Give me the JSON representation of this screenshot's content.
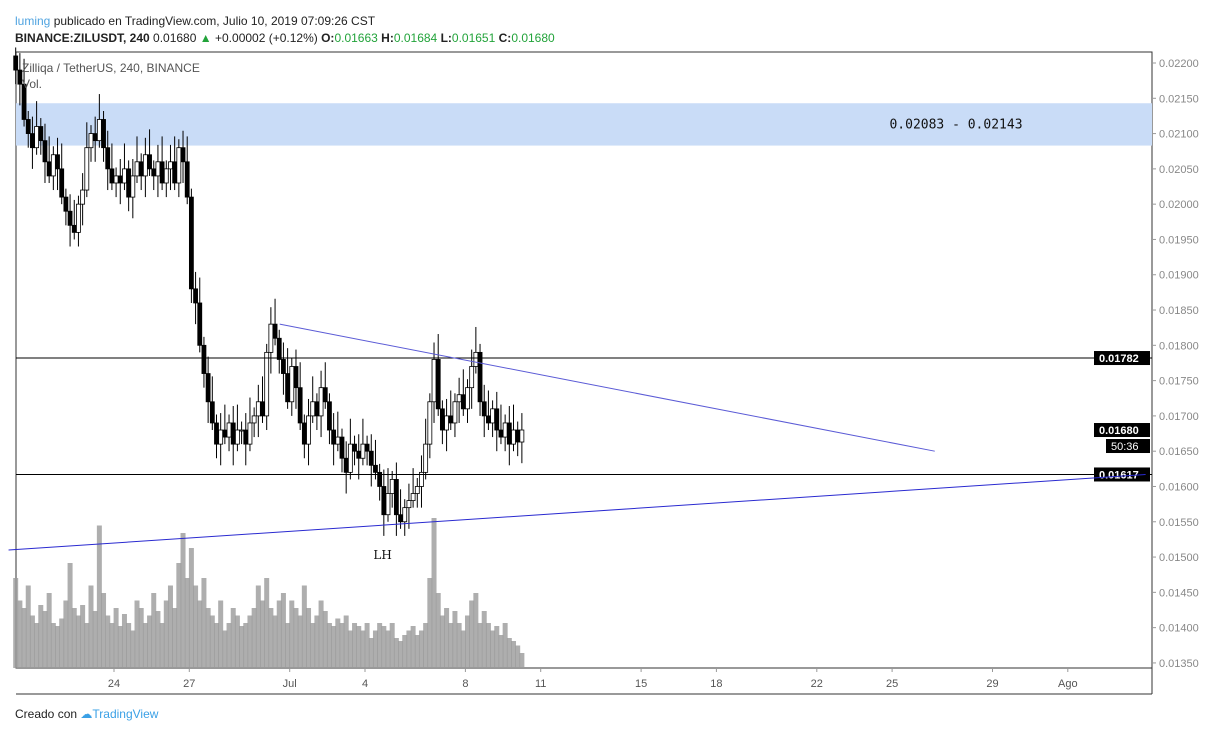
{
  "header": {
    "user": "luming",
    "published": "publicado en TradingView.com, Julio 10, 2019 07:09:26 CST",
    "symbol": "BINANCE:ZILUSDT, 240",
    "last": "0.01680",
    "change": "+0.00002 (+0.12%)",
    "o_label": "O:",
    "o": "0.01663",
    "h_label": "H:",
    "h": "0.01684",
    "l_label": "L:",
    "l": "0.01651",
    "c_label": "C:",
    "c": "0.01680"
  },
  "legend": {
    "title": "Zilliqa / TetherUS, 240, BINANCE",
    "vol": "Vol."
  },
  "footer": {
    "created": "Creado con",
    "brand": "TradingView"
  },
  "colors": {
    "up": "#ffffff",
    "down": "#000000",
    "zone": "#c9dcf7",
    "trendline": "#5b5bd6",
    "support": "#2a2ad0",
    "hline": "#000000",
    "volume": "#9a9a9a"
  },
  "chart_data": {
    "type": "candlestick",
    "timeframe": "240",
    "start": "2019-06-20",
    "ylim": [
      0.0135,
      0.0222
    ],
    "y_ticks": [
      "0.02200",
      "0.02150",
      "0.02100",
      "0.02050",
      "0.02000",
      "0.01950",
      "0.01900",
      "0.01850",
      "0.01800",
      "0.01750",
      "0.01700",
      "0.01650",
      "0.01600",
      "0.01550",
      "0.01500",
      "0.01450",
      "0.01400",
      "0.01350"
    ],
    "x_ticks": [
      {
        "label": "24",
        "day": 4
      },
      {
        "label": "27",
        "day": 7
      },
      {
        "label": "Jul",
        "day": 11
      },
      {
        "label": "4",
        "day": 14
      },
      {
        "label": "8",
        "day": 18
      },
      {
        "label": "11",
        "day": 21
      },
      {
        "label": "15",
        "day": 25
      },
      {
        "label": "18",
        "day": 28
      },
      {
        "label": "22",
        "day": 32
      },
      {
        "label": "25",
        "day": 35
      },
      {
        "label": "29",
        "day": 39
      },
      {
        "label": "Ago",
        "day": 42
      }
    ],
    "closes": [
      0.0219,
      0.0217,
      0.0212,
      0.021,
      0.0208,
      0.0211,
      0.0209,
      0.0206,
      0.0204,
      0.0207,
      0.0205,
      0.0201,
      0.0199,
      0.0197,
      0.0196,
      0.02,
      0.0202,
      0.0208,
      0.021,
      0.0209,
      0.0212,
      0.0208,
      0.0205,
      0.0203,
      0.0204,
      0.0203,
      0.0205,
      0.0201,
      0.0204,
      0.0206,
      0.0204,
      0.0207,
      0.0205,
      0.0204,
      0.0206,
      0.0203,
      0.0205,
      0.0206,
      0.0203,
      0.0208,
      0.0206,
      0.0201,
      0.0188,
      0.0186,
      0.018,
      0.0176,
      0.0172,
      0.0169,
      0.0166,
      0.0168,
      0.0167,
      0.0169,
      0.0166,
      0.0168,
      0.0168,
      0.0166,
      0.0169,
      0.017,
      0.0172,
      0.017,
      0.0179,
      0.0183,
      0.0181,
      0.0178,
      0.0176,
      0.0172,
      0.0177,
      0.0174,
      0.0169,
      0.0166,
      0.017,
      0.0172,
      0.017,
      0.0174,
      0.0172,
      0.0168,
      0.0166,
      0.0167,
      0.0164,
      0.0162,
      0.0166,
      0.0165,
      0.0164,
      0.0166,
      0.0165,
      0.0163,
      0.0162,
      0.016,
      0.0156,
      0.0159,
      0.0161,
      0.0156,
      0.0155,
      0.0157,
      0.0158,
      0.0159,
      0.016,
      0.0162,
      0.0166,
      0.0172,
      0.0178,
      0.0171,
      0.0168,
      0.017,
      0.0169,
      0.0172,
      0.0173,
      0.0171,
      0.0174,
      0.0177,
      0.0179,
      0.0172,
      0.017,
      0.0169,
      0.0171,
      0.0168,
      0.0167,
      0.0169,
      0.0166,
      0.0168,
      0.01663,
      0.0168
    ],
    "volume": [
      60,
      45,
      40,
      55,
      35,
      30,
      42,
      38,
      50,
      30,
      28,
      33,
      45,
      70,
      40,
      35,
      42,
      30,
      55,
      38,
      95,
      50,
      35,
      30,
      40,
      28,
      36,
      30,
      25,
      45,
      40,
      30,
      35,
      50,
      38,
      30,
      45,
      55,
      40,
      70,
      90,
      60,
      80,
      55,
      45,
      60,
      40,
      35,
      30,
      45,
      25,
      30,
      40,
      35,
      28,
      30,
      35,
      40,
      55,
      45,
      60,
      40,
      35,
      45,
      50,
      30,
      45,
      40,
      35,
      55,
      40,
      30,
      35,
      45,
      38,
      30,
      28,
      33,
      30,
      35,
      25,
      30,
      28,
      25,
      30,
      20,
      25,
      30,
      28,
      25,
      30,
      20,
      18,
      22,
      25,
      28,
      22,
      25,
      30,
      60,
      100,
      50,
      35,
      40,
      30,
      38,
      30,
      25,
      35,
      45,
      50,
      30,
      38,
      30,
      25,
      28,
      22,
      30,
      20,
      18,
      15,
      10
    ],
    "zone": {
      "low": 0.02083,
      "high": 0.02143,
      "label": "0.02083 - 0.02143"
    },
    "hlines": [
      {
        "price": 0.01782,
        "label": "0.01782"
      },
      {
        "price": 0.01617,
        "label": "0.01617"
      }
    ],
    "last_price": {
      "label": "0.01680",
      "countdown": "50:36"
    },
    "resistance": {
      "from": {
        "day": 10.6,
        "price": 0.0183
      },
      "to": {
        "day": 36.7,
        "price": 0.0165
      }
    },
    "support": {
      "from": {
        "day": -0.2,
        "price": 0.0151
      },
      "to": {
        "day": 45.1,
        "price": 0.01617
      }
    },
    "annotation": {
      "label": "LH",
      "day": 14.7,
      "price": 0.0152
    }
  }
}
